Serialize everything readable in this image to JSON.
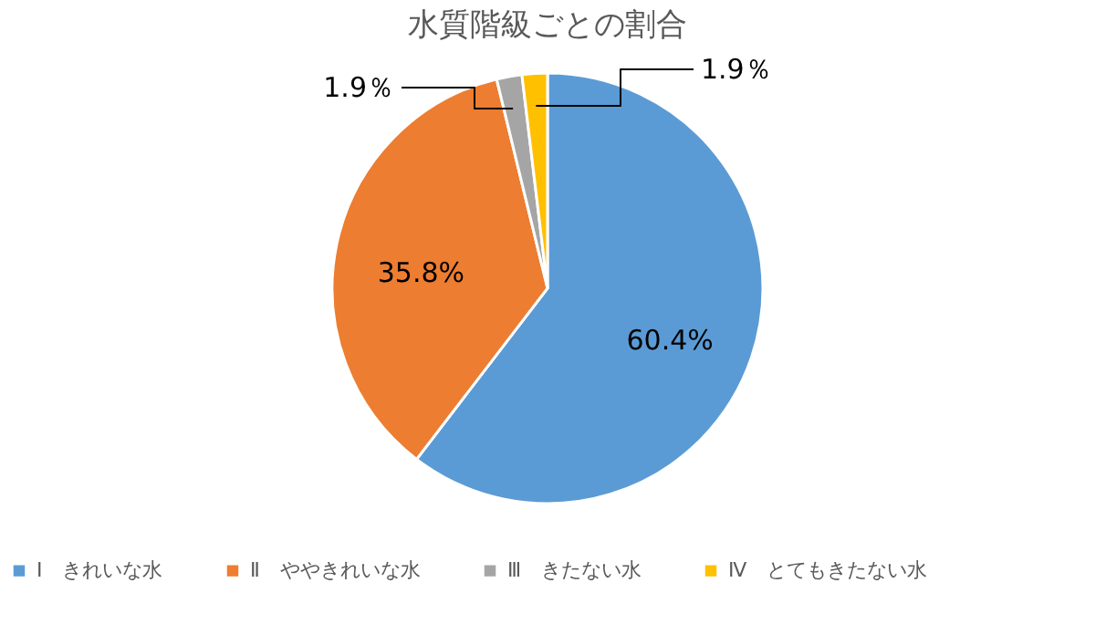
{
  "chart_data": {
    "type": "pie",
    "title": "水質階級ごとの割合",
    "categories": [
      "Ⅰ　きれいな水",
      "Ⅱ　ややきれいな水",
      "Ⅲ　きたない水",
      "Ⅳ　とてもきたない水"
    ],
    "values": [
      60.4,
      35.8,
      1.9,
      1.9
    ],
    "colors": [
      "#5b9bd5",
      "#ed7d31",
      "#a5a5a5",
      "#ffc000"
    ],
    "value_labels": [
      "60.4%",
      "35.8%",
      "1.9％",
      "1.9％"
    ],
    "legend": "bottom"
  }
}
